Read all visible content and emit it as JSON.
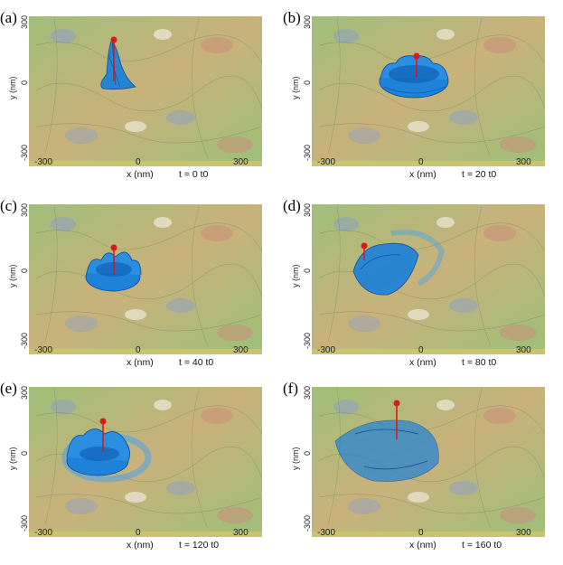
{
  "figure": {
    "panels": [
      {
        "label": "(a)",
        "time": "t = 0 t0"
      },
      {
        "label": "(b)",
        "time": "t = 20 t0"
      },
      {
        "label": "(c)",
        "time": "t = 40 t0"
      },
      {
        "label": "(d)",
        "time": "t = 80 t0"
      },
      {
        "label": "(e)",
        "time": "t = 120 t0"
      },
      {
        "label": "(f)",
        "time": "t = 160 t0"
      }
    ],
    "axes": {
      "y_label": "y (nm)",
      "x_label": "x (nm)",
      "y_ticks": [
        "300",
        "0",
        "-300"
      ],
      "x_ticks": [
        "-300",
        "0",
        "300"
      ]
    }
  },
  "colors": {
    "surface_green": "#9fbf7a",
    "surface_tan": "#c9b27c",
    "surface_blue_spot": "#8d9fc7",
    "surface_red_spot": "#c98a7a",
    "wavepacket_blue": "#1e82d8",
    "wavepacket_dark": "#0a4a96",
    "marker_red": "#d81a1a"
  }
}
